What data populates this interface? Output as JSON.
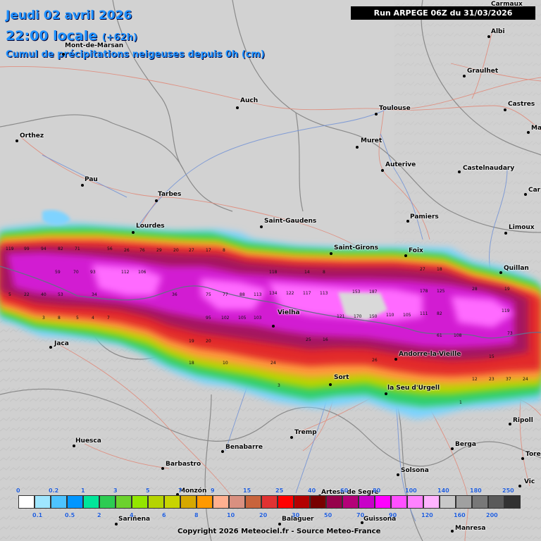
{
  "header": {
    "date_line": "Jeudi 02 avril 2026",
    "time_line": "22:00 locale",
    "offset": "(+62h)",
    "description": "Cumul de précipitations neigeuses depuis 0h (cm)",
    "run_label": "Run ARPEGE 06Z du 31/03/2026"
  },
  "footer": {
    "copyright": "Copyright 2026 Meteociel.fr - Source Meteo-France"
  },
  "legend": {
    "colors": [
      "#ffffff",
      "#9fe6ff",
      "#4dc3ff",
      "#0096ff",
      "#00e69a",
      "#2dcc52",
      "#6cd22d",
      "#93e600",
      "#b5d400",
      "#c8d400",
      "#d6a800",
      "#ff9900",
      "#ffb090",
      "#d99080",
      "#c8643c",
      "#e03232",
      "#ff0000",
      "#b40000",
      "#780000",
      "#96004b",
      "#b40078",
      "#c800c8",
      "#ff00ff",
      "#ff50ff",
      "#ff82ff",
      "#ffb4ff",
      "#c8c8c8",
      "#a0a0a0",
      "#787878",
      "#5a5a5a",
      "#323232"
    ],
    "top_labels": [
      "0",
      "0.2",
      "1",
      "3",
      "5",
      "7",
      "9",
      "15",
      "25",
      "40",
      "60",
      "80",
      "100",
      "140",
      "180",
      "250"
    ],
    "bottom_labels": [
      "0.1",
      "0.5",
      "2",
      "4",
      "6",
      "8",
      "10",
      "20",
      "30",
      "50",
      "70",
      "90",
      "120",
      "160",
      "200"
    ]
  },
  "cities": [
    {
      "name": "Carmaux"
    },
    {
      "name": "Albi"
    },
    {
      "name": "Graulhet"
    },
    {
      "name": "Castres"
    },
    {
      "name": "Ma"
    },
    {
      "name": "Toulouse"
    },
    {
      "name": "Auch"
    },
    {
      "name": "Mont-de-Marsan"
    },
    {
      "name": "Orthez"
    },
    {
      "name": "Pau"
    },
    {
      "name": "Tarbes"
    },
    {
      "name": "Muret"
    },
    {
      "name": "Auterive"
    },
    {
      "name": "Castelnaudary"
    },
    {
      "name": "Car"
    },
    {
      "name": "Lourdes"
    },
    {
      "name": "Saint-Gaudens"
    },
    {
      "name": "Pamiers"
    },
    {
      "name": "Limoux"
    },
    {
      "name": "Saint-Girons"
    },
    {
      "name": "Foix"
    },
    {
      "name": "Quillan"
    },
    {
      "name": "Vielha"
    },
    {
      "name": "Jaca"
    },
    {
      "name": "Andorre-la-Vieille"
    },
    {
      "name": "Sort"
    },
    {
      "name": "la Seu d'Urgell"
    },
    {
      "name": "Ripoll"
    },
    {
      "name": "Huesca"
    },
    {
      "name": "Benabarre"
    },
    {
      "name": "Tremp"
    },
    {
      "name": "Berga"
    },
    {
      "name": "Tore"
    },
    {
      "name": "Barbastro"
    },
    {
      "name": "Solsona"
    },
    {
      "name": "Vic"
    },
    {
      "name": "Monzón"
    },
    {
      "name": "Artesa de Segre"
    },
    {
      "name": "Sariñena"
    },
    {
      "name": "Balaguer"
    },
    {
      "name": "Guissona"
    },
    {
      "name": "Manresa"
    }
  ],
  "grid_values": [
    {
      "v": "119"
    },
    {
      "v": "99"
    },
    {
      "v": "94"
    },
    {
      "v": "82"
    },
    {
      "v": "71"
    },
    {
      "v": "56"
    },
    {
      "v": "26"
    },
    {
      "v": "76"
    },
    {
      "v": "29"
    },
    {
      "v": "20"
    },
    {
      "v": "27"
    },
    {
      "v": "17"
    },
    {
      "v": "8"
    },
    {
      "v": "59"
    },
    {
      "v": "70"
    },
    {
      "v": "93"
    },
    {
      "v": "112"
    },
    {
      "v": "106"
    },
    {
      "v": "118"
    },
    {
      "v": "14"
    },
    {
      "v": "8"
    },
    {
      "v": "27"
    },
    {
      "v": "18"
    },
    {
      "v": "5"
    },
    {
      "v": "22"
    },
    {
      "v": "40"
    },
    {
      "v": "53"
    },
    {
      "v": "34"
    },
    {
      "v": "36"
    },
    {
      "v": "75"
    },
    {
      "v": "77"
    },
    {
      "v": "88"
    },
    {
      "v": "113"
    },
    {
      "v": "134"
    },
    {
      "v": "122"
    },
    {
      "v": "117"
    },
    {
      "v": "113"
    },
    {
      "v": "153"
    },
    {
      "v": "187"
    },
    {
      "v": "178"
    },
    {
      "v": "125"
    },
    {
      "v": "28"
    },
    {
      "v": "19"
    },
    {
      "v": "95"
    },
    {
      "v": "102"
    },
    {
      "v": "105"
    },
    {
      "v": "103"
    },
    {
      "v": "121"
    },
    {
      "v": "170"
    },
    {
      "v": "150"
    },
    {
      "v": "110"
    },
    {
      "v": "105"
    },
    {
      "v": "111"
    },
    {
      "v": "82"
    },
    {
      "v": "119"
    },
    {
      "v": "73"
    },
    {
      "v": "25"
    },
    {
      "v": "16"
    },
    {
      "v": "19"
    },
    {
      "v": "20"
    },
    {
      "v": "108"
    },
    {
      "v": "61"
    },
    {
      "v": "18"
    },
    {
      "v": "10"
    },
    {
      "v": "24"
    },
    {
      "v": "26"
    },
    {
      "v": "15"
    },
    {
      "v": "23"
    },
    {
      "v": "37"
    },
    {
      "v": "24"
    },
    {
      "v": "3"
    },
    {
      "v": "8"
    },
    {
      "v": "5"
    },
    {
      "v": "4"
    },
    {
      "v": "7"
    },
    {
      "v": "3"
    },
    {
      "v": "12"
    },
    {
      "v": "1"
    }
  ]
}
